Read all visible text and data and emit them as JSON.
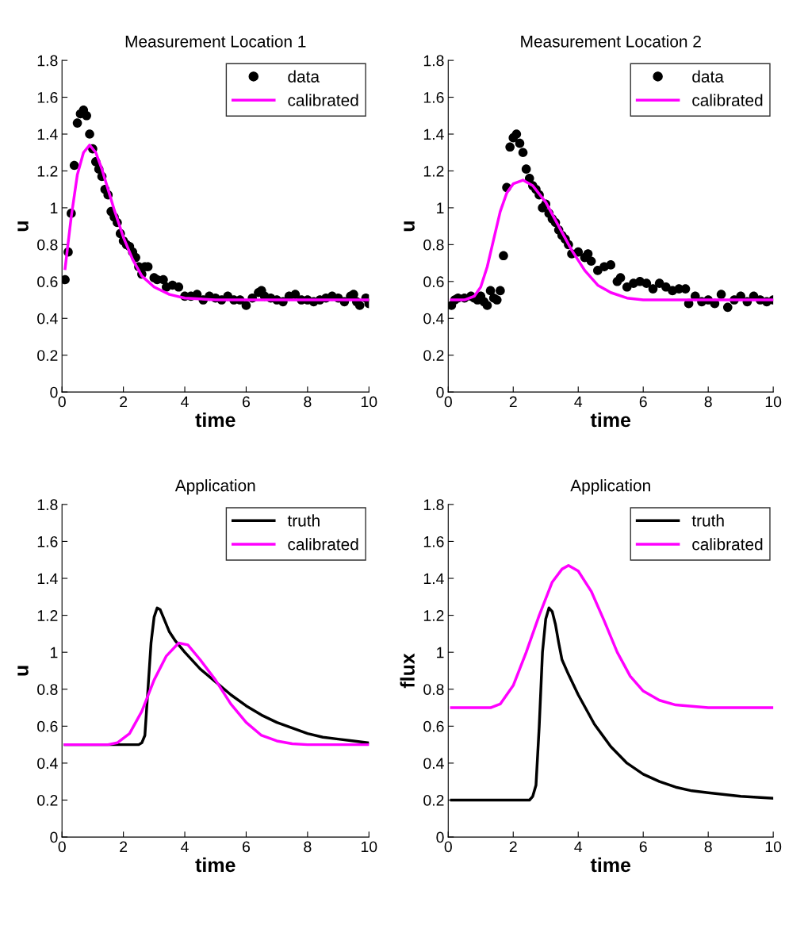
{
  "chart_data": [
    {
      "type": "line",
      "title": "Measurement Location 1",
      "xlabel": "time",
      "ylabel": "u",
      "xlim": [
        0,
        10
      ],
      "ylim": [
        0,
        1.8
      ],
      "xticks": [
        0,
        2,
        4,
        6,
        8,
        10
      ],
      "yticks": [
        0,
        0.2,
        0.4,
        0.6,
        0.8,
        1,
        1.2,
        1.4,
        1.6,
        1.8
      ],
      "grid": false,
      "legend": "top right",
      "series": [
        {
          "name": "data",
          "type": "scatter",
          "marker": "circle",
          "color": "#000000",
          "x": [
            0.1,
            0.2,
            0.3,
            0.4,
            0.5,
            0.6,
            0.7,
            0.8,
            0.9,
            1.0,
            1.1,
            1.2,
            1.3,
            1.4,
            1.5,
            1.6,
            1.7,
            1.8,
            1.9,
            2.0,
            2.1,
            2.2,
            2.3,
            2.4,
            2.5,
            2.6,
            2.7,
            2.8,
            3.0,
            3.1,
            3.3,
            3.4,
            3.6,
            3.8,
            4.0,
            4.2,
            4.4,
            4.6,
            4.8,
            5.0,
            5.2,
            5.4,
            5.6,
            5.8,
            6.0,
            6.2,
            6.4,
            6.5,
            6.6,
            6.8,
            7.0,
            7.2,
            7.4,
            7.6,
            7.8,
            8.0,
            8.2,
            8.4,
            8.6,
            8.8,
            9.0,
            9.2,
            9.4,
            9.5,
            9.6,
            9.7,
            9.9,
            10
          ],
          "values": [
            0.61,
            0.76,
            0.97,
            1.23,
            1.46,
            1.51,
            1.53,
            1.5,
            1.4,
            1.32,
            1.25,
            1.21,
            1.17,
            1.1,
            1.07,
            0.98,
            0.95,
            0.92,
            0.86,
            0.82,
            0.8,
            0.79,
            0.76,
            0.73,
            0.68,
            0.64,
            0.68,
            0.68,
            0.62,
            0.61,
            0.61,
            0.57,
            0.58,
            0.57,
            0.52,
            0.52,
            0.53,
            0.5,
            0.52,
            0.51,
            0.5,
            0.52,
            0.5,
            0.5,
            0.47,
            0.51,
            0.54,
            0.55,
            0.52,
            0.51,
            0.5,
            0.49,
            0.52,
            0.53,
            0.5,
            0.5,
            0.49,
            0.5,
            0.51,
            0.52,
            0.51,
            0.49,
            0.52,
            0.53,
            0.49,
            0.47,
            0.51,
            0.48
          ]
        },
        {
          "name": "calibrated",
          "color": "#ff00ff",
          "x": [
            0.1,
            0.3,
            0.5,
            0.7,
            0.9,
            1.1,
            1.3,
            1.5,
            1.7,
            2.0,
            2.3,
            2.6,
            3.0,
            3.5,
            4.0,
            5.0,
            10
          ],
          "values": [
            0.67,
            0.95,
            1.18,
            1.3,
            1.34,
            1.3,
            1.21,
            1.1,
            0.99,
            0.84,
            0.72,
            0.63,
            0.57,
            0.53,
            0.51,
            0.5,
            0.5
          ]
        }
      ]
    },
    {
      "type": "line",
      "title": "Measurement Location 2",
      "xlabel": "time",
      "ylabel": "u",
      "xlim": [
        0,
        10
      ],
      "ylim": [
        0,
        1.8
      ],
      "xticks": [
        0,
        2,
        4,
        6,
        8,
        10
      ],
      "yticks": [
        0,
        0.2,
        0.4,
        0.6,
        0.8,
        1,
        1.2,
        1.4,
        1.6,
        1.8
      ],
      "grid": false,
      "legend": "top right",
      "series": [
        {
          "name": "data",
          "type": "scatter",
          "marker": "circle",
          "color": "#000000",
          "x": [
            0.1,
            0.2,
            0.3,
            0.5,
            0.7,
            0.8,
            0.9,
            1.0,
            1.1,
            1.2,
            1.3,
            1.4,
            1.5,
            1.6,
            1.7,
            1.8,
            1.9,
            2.0,
            2.1,
            2.2,
            2.3,
            2.4,
            2.5,
            2.6,
            2.7,
            2.8,
            2.9,
            3.0,
            3.1,
            3.2,
            3.3,
            3.4,
            3.5,
            3.6,
            3.7,
            3.8,
            4.0,
            4.2,
            4.3,
            4.4,
            4.6,
            4.8,
            5.0,
            5.2,
            5.3,
            5.5,
            5.7,
            5.9,
            6.1,
            6.3,
            6.5,
            6.7,
            6.9,
            7.1,
            7.3,
            7.4,
            7.6,
            7.8,
            8.0,
            8.2,
            8.4,
            8.6,
            8.8,
            9.0,
            9.2,
            9.4,
            9.6,
            9.8,
            10
          ],
          "values": [
            0.47,
            0.5,
            0.51,
            0.51,
            0.52,
            0.51,
            0.5,
            0.52,
            0.49,
            0.47,
            0.55,
            0.51,
            0.5,
            0.55,
            0.74,
            1.11,
            1.33,
            1.38,
            1.4,
            1.35,
            1.3,
            1.21,
            1.16,
            1.12,
            1.1,
            1.07,
            1.0,
            1.02,
            0.97,
            0.94,
            0.92,
            0.88,
            0.85,
            0.83,
            0.8,
            0.75,
            0.76,
            0.73,
            0.75,
            0.71,
            0.66,
            0.68,
            0.69,
            0.6,
            0.62,
            0.57,
            0.59,
            0.6,
            0.59,
            0.56,
            0.59,
            0.57,
            0.55,
            0.56,
            0.56,
            0.48,
            0.52,
            0.49,
            0.5,
            0.48,
            0.53,
            0.46,
            0.5,
            0.52,
            0.49,
            0.52,
            0.5,
            0.49,
            0.5
          ]
        },
        {
          "name": "calibrated",
          "color": "#ff00ff",
          "x": [
            0.1,
            0.5,
            0.8,
            1.0,
            1.2,
            1.4,
            1.6,
            1.8,
            2.0,
            2.3,
            2.6,
            3.0,
            3.4,
            3.8,
            4.2,
            4.6,
            5.0,
            5.5,
            6.0,
            10
          ],
          "values": [
            0.5,
            0.5,
            0.52,
            0.57,
            0.68,
            0.83,
            0.98,
            1.08,
            1.13,
            1.15,
            1.12,
            1.03,
            0.9,
            0.77,
            0.66,
            0.58,
            0.54,
            0.51,
            0.5,
            0.5
          ]
        }
      ]
    },
    {
      "type": "line",
      "title": "Application",
      "xlabel": "time",
      "ylabel": "u",
      "xlim": [
        0,
        10
      ],
      "ylim": [
        0,
        1.8
      ],
      "xticks": [
        0,
        2,
        4,
        6,
        8,
        10
      ],
      "yticks": [
        0,
        0.2,
        0.4,
        0.6,
        0.8,
        1,
        1.2,
        1.4,
        1.6,
        1.8
      ],
      "grid": false,
      "legend": "top right",
      "series": [
        {
          "name": "truth",
          "color": "#000000",
          "x": [
            0.1,
            2.5,
            2.6,
            2.7,
            2.8,
            2.9,
            3.0,
            3.1,
            3.2,
            3.3,
            3.5,
            3.7,
            4.0,
            4.5,
            5.0,
            5.5,
            6.0,
            6.5,
            7.0,
            7.5,
            8.0,
            8.5,
            9.0,
            9.5,
            10
          ],
          "values": [
            0.5,
            0.5,
            0.51,
            0.55,
            0.8,
            1.05,
            1.19,
            1.24,
            1.23,
            1.19,
            1.11,
            1.06,
            1.0,
            0.91,
            0.84,
            0.77,
            0.71,
            0.66,
            0.62,
            0.59,
            0.56,
            0.54,
            0.53,
            0.52,
            0.51
          ]
        },
        {
          "name": "calibrated",
          "color": "#ff00ff",
          "x": [
            0.1,
            1.5,
            1.8,
            2.2,
            2.6,
            3.0,
            3.4,
            3.8,
            4.1,
            4.5,
            5.0,
            5.5,
            6.0,
            6.5,
            7.0,
            7.5,
            8.0,
            10
          ],
          "values": [
            0.5,
            0.5,
            0.51,
            0.56,
            0.68,
            0.85,
            0.98,
            1.05,
            1.04,
            0.96,
            0.85,
            0.72,
            0.62,
            0.55,
            0.52,
            0.505,
            0.5,
            0.5
          ]
        }
      ]
    },
    {
      "type": "line",
      "title": "Application",
      "xlabel": "time",
      "ylabel": "flux",
      "xlim": [
        0,
        10
      ],
      "ylim": [
        0,
        1.8
      ],
      "xticks": [
        0,
        2,
        4,
        6,
        8,
        10
      ],
      "yticks": [
        0,
        0.2,
        0.4,
        0.6,
        0.8,
        1,
        1.2,
        1.4,
        1.6,
        1.8
      ],
      "grid": false,
      "legend": "top right",
      "series": [
        {
          "name": "truth",
          "color": "#000000",
          "x": [
            0.1,
            2.5,
            2.6,
            2.7,
            2.8,
            2.9,
            3.0,
            3.1,
            3.2,
            3.3,
            3.4,
            3.5,
            3.7,
            4.0,
            4.5,
            5.0,
            5.5,
            6.0,
            6.5,
            7.0,
            7.5,
            8.0,
            9.0,
            10
          ],
          "values": [
            0.2,
            0.2,
            0.22,
            0.28,
            0.6,
            1.0,
            1.18,
            1.24,
            1.22,
            1.15,
            1.05,
            0.96,
            0.88,
            0.77,
            0.61,
            0.49,
            0.4,
            0.34,
            0.3,
            0.27,
            0.25,
            0.24,
            0.22,
            0.21
          ]
        },
        {
          "name": "calibrated",
          "color": "#ff00ff",
          "x": [
            0.1,
            1.3,
            1.6,
            2.0,
            2.4,
            2.8,
            3.2,
            3.5,
            3.7,
            4.0,
            4.4,
            4.8,
            5.2,
            5.6,
            6.0,
            6.5,
            7.0,
            8.0,
            10
          ],
          "values": [
            0.7,
            0.7,
            0.72,
            0.82,
            1.0,
            1.2,
            1.38,
            1.45,
            1.47,
            1.44,
            1.33,
            1.17,
            1.0,
            0.87,
            0.79,
            0.74,
            0.715,
            0.7,
            0.7
          ]
        }
      ]
    }
  ]
}
